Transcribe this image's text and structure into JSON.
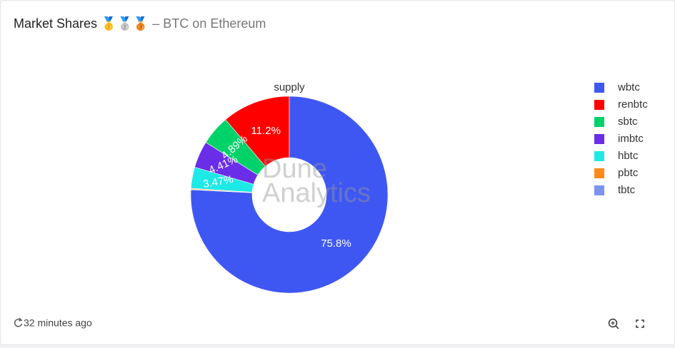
{
  "header": {
    "title": "Market Shares 🥇🥈🥉",
    "subtitle": "– BTC on Ethereum"
  },
  "chart_data": {
    "type": "donut",
    "title": "supply",
    "watermark": [
      "Dune",
      "Analytics"
    ],
    "categories": [
      "wbtc",
      "renbtc",
      "sbtc",
      "imbtc",
      "hbtc",
      "pbtc",
      "tbtc"
    ],
    "values": [
      75.8,
      11.2,
      4.89,
      4.41,
      3.47,
      0.15,
      0.08
    ],
    "value_labels": [
      "75.8%",
      "11.2%",
      "4.89%",
      "4.41%",
      "3.47%",
      null,
      null
    ],
    "colors": [
      "#3f57f2",
      "#ff0000",
      "#00d26a",
      "#6a2ee8",
      "#1de9e6",
      "#ff8a1c",
      "#7b94f2"
    ],
    "legend": "right"
  },
  "footer": {
    "updated": "32 minutes ago"
  }
}
